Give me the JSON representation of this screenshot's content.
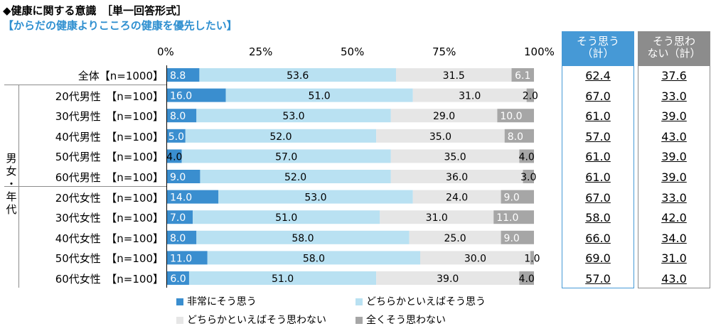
{
  "title": "◆健康に関する意識　［単一回答形式］",
  "subtitle": "【からだの健康よりこころの健康を優先したい】",
  "colors": {
    "strong_agree": "#3a8ecf",
    "somewhat_agree": "#b9e1f2",
    "somewhat_disagree": "#e6e6e6",
    "strong_disagree": "#a6a6a6",
    "agree_header": "#4699d6",
    "disagree_header": "#8c8c8c"
  },
  "group_label": "男女・年代",
  "summary_headers": {
    "agree": "そう思う\n（計）",
    "disagree": "そう思わ\nない（計）"
  },
  "legend": [
    {
      "label": "非常にそう思う",
      "color": "#3a8ecf"
    },
    {
      "label": "どちらかといえばそう思う",
      "color": "#b9e1f2"
    },
    {
      "label": "どちらかといえばそう思わない",
      "color": "#e6e6e6"
    },
    {
      "label": "全くそう思わない",
      "color": "#a6a6a6"
    }
  ],
  "chart_data": {
    "type": "bar",
    "orientation": "horizontal",
    "stacked": true,
    "x_ticks": [
      "0%",
      "25%",
      "50%",
      "75%",
      "100%"
    ],
    "xlim": [
      0,
      100
    ],
    "categories": [
      "全体【n=1000】",
      "20代男性　【n=100】",
      "30代男性　【n=100】",
      "40代男性　【n=100】",
      "50代男性　【n=100】",
      "60代男性　【n=100】",
      "20代女性　【n=100】",
      "30代女性　【n=100】",
      "40代女性　【n=100】",
      "50代女性　【n=100】",
      "60代女性　【n=100】"
    ],
    "series": [
      {
        "name": "非常にそう思う",
        "values": [
          8.8,
          16.0,
          8.0,
          5.0,
          4.0,
          9.0,
          14.0,
          7.0,
          8.0,
          11.0,
          6.0
        ]
      },
      {
        "name": "どちらかといえばそう思う",
        "values": [
          53.6,
          51.0,
          53.0,
          52.0,
          57.0,
          52.0,
          53.0,
          51.0,
          58.0,
          58.0,
          51.0
        ]
      },
      {
        "name": "どちらかといえばそう思わない",
        "values": [
          31.5,
          31.0,
          29.0,
          35.0,
          35.0,
          36.0,
          24.0,
          31.0,
          25.0,
          30.0,
          39.0
        ]
      },
      {
        "name": "全くそう思わない",
        "values": [
          6.1,
          2.0,
          10.0,
          8.0,
          4.0,
          3.0,
          9.0,
          11.0,
          9.0,
          1.0,
          4.0
        ]
      }
    ],
    "agree_total": [
      "62.4",
      "67.0",
      "61.0",
      "57.0",
      "61.0",
      "61.0",
      "67.0",
      "58.0",
      "66.0",
      "69.0",
      "57.0"
    ],
    "disagree_total": [
      "37.6",
      "33.0",
      "39.0",
      "43.0",
      "39.0",
      "39.0",
      "33.0",
      "42.0",
      "34.0",
      "31.0",
      "43.0"
    ]
  }
}
